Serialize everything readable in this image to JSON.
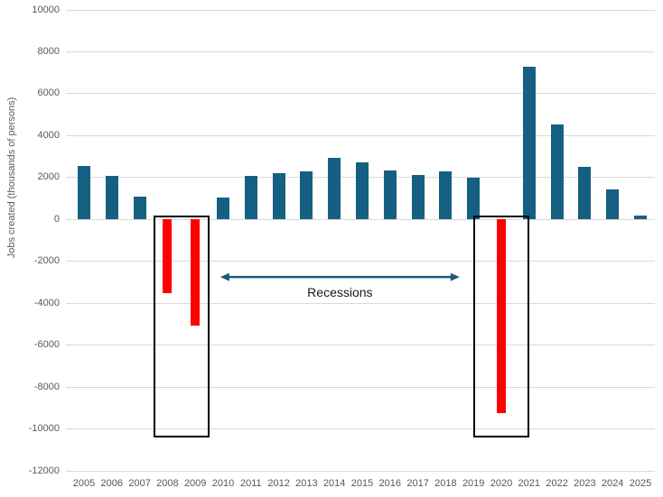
{
  "chart_data": {
    "type": "bar",
    "title": "",
    "xlabel": "",
    "ylabel": "Jobs created (thousands of persons)",
    "ylim": [
      -12000,
      10000
    ],
    "ytick_step": 2000,
    "yticks": [
      10000,
      8000,
      6000,
      4000,
      2000,
      0,
      -2000,
      -4000,
      -6000,
      -8000,
      -10000,
      -12000
    ],
    "grid": true,
    "legend": "none",
    "categories": [
      "2005",
      "2006",
      "2007",
      "2008",
      "2009",
      "2010",
      "2011",
      "2012",
      "2013",
      "2014",
      "2015",
      "2016",
      "2017",
      "2018",
      "2019",
      "2020",
      "2021",
      "2022",
      "2023",
      "2024",
      "2025"
    ],
    "values": [
      2550,
      2070,
      1100,
      -3500,
      -5050,
      1030,
      2080,
      2200,
      2280,
      2960,
      2710,
      2340,
      2110,
      2300,
      2000,
      -9230,
      7280,
      4530,
      2500,
      1440,
      170
    ],
    "colors": {
      "positive_bar": "#156082",
      "negative_bar": "#FF0000",
      "gridline": "#D9D9D9",
      "tick_label": "#595959",
      "axis_title": "#595959",
      "annotation": "#1A5A78",
      "box_border": "#000000"
    },
    "annotations": {
      "label": {
        "text": "Recessions",
        "x_index": 9.2,
        "y_value": -3500
      },
      "arrow": {
        "x_start_index": 4.9,
        "x_end_index": 13.5,
        "y_value": -2750,
        "double_headed": true
      },
      "recession_boxes": [
        {
          "years": "2008-2009",
          "x_start_index": 2.5,
          "x_end_index": 4.5,
          "y_top_value": 200,
          "y_bottom_value": -10400
        },
        {
          "years": "2020",
          "x_start_index": 14.0,
          "x_end_index": 16.0,
          "y_top_value": 200,
          "y_bottom_value": -10400
        }
      ]
    }
  }
}
